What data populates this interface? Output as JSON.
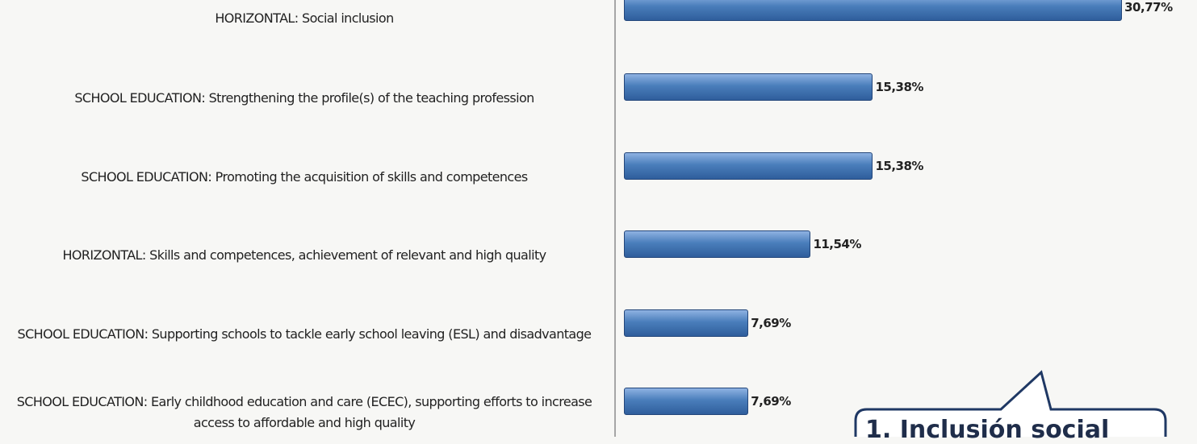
{
  "chart_data": {
    "type": "bar",
    "orientation": "horizontal",
    "categories": [
      "HORIZONTAL: Social inclusion",
      "SCHOOL EDUCATION: Strengthening the profile(s) of the teaching profession",
      "SCHOOL EDUCATION: Promoting the acquisition of skills and competences",
      "HORIZONTAL: Skills and competences, achievement of relevant and high quality",
      "SCHOOL EDUCATION: Supporting schools to tackle early school leaving (ESL) and disadvantage",
      "SCHOOL EDUCATION: Early childhood education and care (ECEC), supporting efforts to increase access to affordable and high quality"
    ],
    "values": [
      30.77,
      15.38,
      15.38,
      11.54,
      7.69,
      7.69
    ],
    "value_labels": [
      "30,77%",
      "15,38%",
      "15,38%",
      "11,54%",
      "7,69%",
      "7,69%"
    ],
    "color": "#4a7ebb",
    "xlim": [
      0,
      35.4
    ],
    "annotation": "1. Inclusión social"
  }
}
